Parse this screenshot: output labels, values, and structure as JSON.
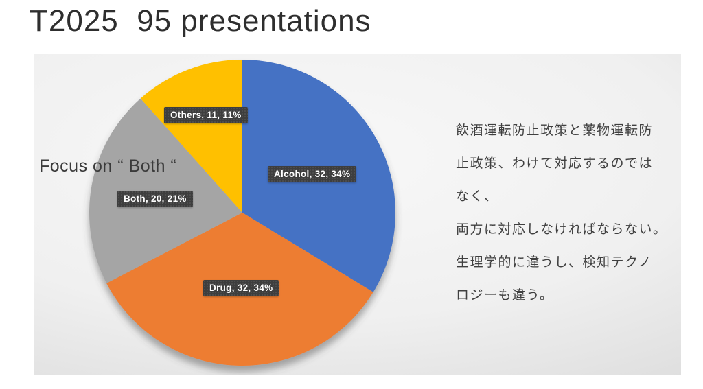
{
  "slide": {
    "title": "T2025  95 presentations",
    "annotation": "Focus on “ Both “",
    "notes_lines": [
      "飲酒運転防止政策と薬物運転防",
      "止政策、わけて対応するのでは",
      "なく、",
      "両方に対応しなければならない。",
      "生理学的に違うし、検知テクノ",
      "ロジーも違う。"
    ]
  },
  "chart_data": {
    "type": "pie",
    "title": "T2025  95 presentations",
    "total": 95,
    "categories": [
      "Alcohol",
      "Drug",
      "Both",
      "Others"
    ],
    "values": [
      32,
      32,
      20,
      11
    ],
    "percentages": [
      34,
      34,
      21,
      11
    ],
    "colors": [
      "#4472C4",
      "#ED7D31",
      "#A5A5A5",
      "#FFC000"
    ],
    "labels": [
      "Alcohol, 32, 34%",
      "Drug, 32, 34%",
      "Both, 20, 21%",
      "Others, 11, 11%"
    ],
    "start_angle_deg": 0,
    "direction": "clockwise",
    "legend": "none",
    "label_style": {
      "background": "#3E3E3E",
      "text_color": "#FFFFFF"
    }
  }
}
